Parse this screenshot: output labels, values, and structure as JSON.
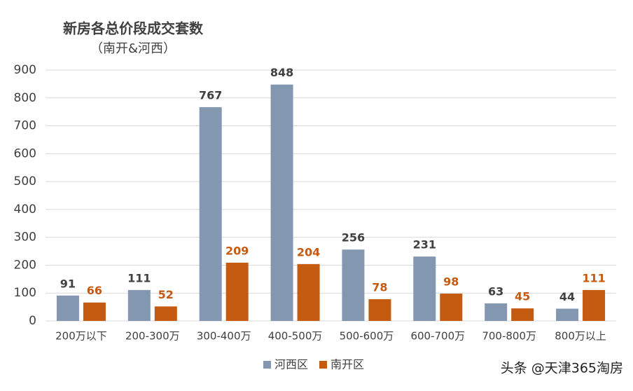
{
  "chart_data": {
    "type": "bar",
    "title": "新房各总价段成交套数",
    "subtitle": "（南开&河西）",
    "categories": [
      "200万以下",
      "200-300万",
      "300-400万",
      "400-500万",
      "500-600万",
      "600-700万",
      "700-800万",
      "800万以上"
    ],
    "series": [
      {
        "name": "河西区",
        "color": "#8497b0",
        "label_color": "#404040",
        "values": [
          91,
          111,
          767,
          848,
          256,
          231,
          63,
          44
        ]
      },
      {
        "name": "南开区",
        "color": "#c55a11",
        "label_color": "#c55a11",
        "values": [
          66,
          52,
          209,
          204,
          78,
          98,
          45,
          111
        ]
      }
    ],
    "ylim": [
      0,
      900
    ],
    "yticks": [
      0,
      100,
      200,
      300,
      400,
      500,
      600,
      700,
      800,
      900
    ],
    "grid": true,
    "legend": "bottom",
    "source": "头条 @天津365淘房"
  }
}
